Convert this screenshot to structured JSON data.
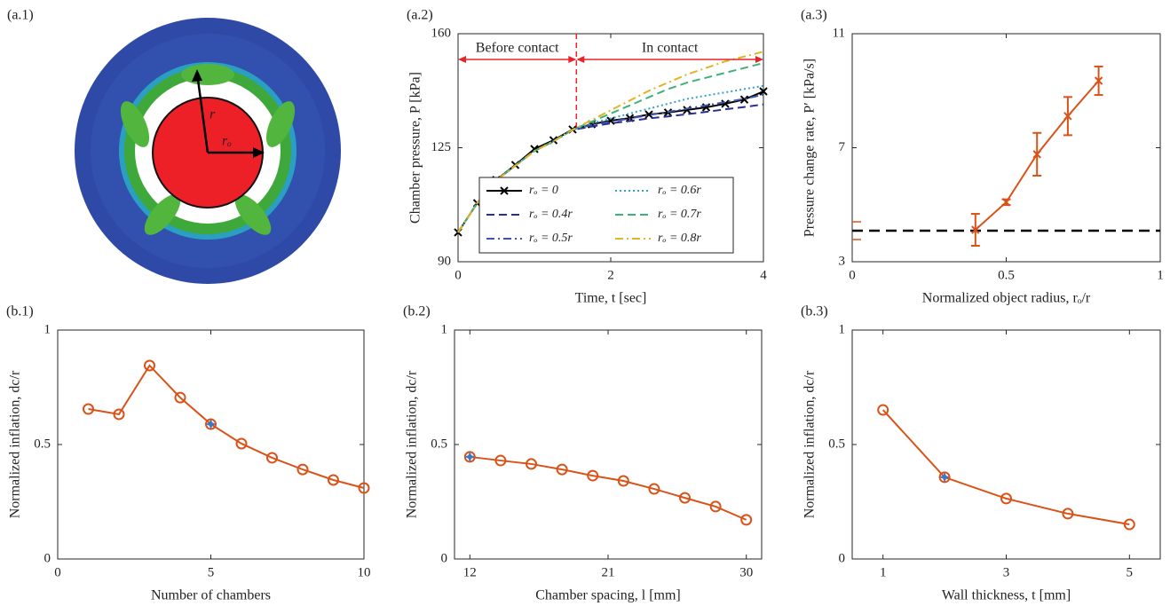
{
  "image_panel": {
    "panel": "(a.1)",
    "labels": [
      "r",
      "rₒ"
    ]
  },
  "chart_data": [
    {
      "type": "line",
      "panel": "(a.2)",
      "x_label": "Time, t [sec]",
      "y_label": "Chamber pressure, P [kPa]",
      "x": [
        0,
        0.25,
        0.5,
        0.75,
        1,
        1.25,
        1.5,
        1.75,
        2,
        2.25,
        2.5,
        2.75,
        3,
        3.25,
        3.5,
        3.75,
        4
      ],
      "xlim": [
        0,
        4
      ],
      "xticks": [
        0,
        2,
        4
      ],
      "ylim": [
        90,
        160
      ],
      "yticks": [
        90,
        125,
        160
      ],
      "contact_time": 1.55,
      "annotations": [
        "Before contact",
        "In contact"
      ],
      "annotation_color": "#e8242b",
      "series": [
        {
          "name": "rₒ = 0",
          "color": "#000000",
          "dash": "solid",
          "marker": "x",
          "values": [
            99,
            108,
            115.1,
            119.7,
            124.6,
            127.3,
            130.6,
            132.2,
            133.3,
            134.1,
            135.2,
            135.8,
            136.6,
            137.4,
            138.5,
            139.8,
            142.3
          ]
        },
        {
          "name": "rₒ = 0.4r",
          "color": "#2b2f8f",
          "dash": "dashed",
          "values": [
            99,
            108,
            115,
            119.5,
            124,
            127,
            130.5,
            131.5,
            132.5,
            133.2,
            134,
            134.6,
            135.3,
            136,
            136.8,
            137.5,
            138.3
          ]
        },
        {
          "name": "rₒ = 0.5r",
          "color": "#3d55a8",
          "dash": "dashdot",
          "values": [
            99,
            108,
            115,
            119.5,
            124,
            127,
            130.5,
            132,
            133,
            134,
            135,
            136,
            137,
            138,
            139,
            140,
            141.3
          ]
        },
        {
          "name": "rₒ = 0.6r",
          "color": "#34a3c8",
          "dash": "dotted",
          "values": [
            99,
            108,
            115,
            119.5,
            124,
            127,
            130.5,
            132.5,
            134,
            135.5,
            137,
            138.5,
            140,
            141,
            142,
            143,
            144
          ]
        },
        {
          "name": "rₒ = 0.7r",
          "color": "#3db27a",
          "dash": "dashed",
          "values": [
            99,
            108,
            115,
            119.5,
            124,
            127,
            130.5,
            133,
            135.5,
            138,
            140.5,
            143,
            145,
            146.5,
            148,
            149.5,
            151
          ]
        },
        {
          "name": "rₒ = 0.8r",
          "color": "#e2b322",
          "dash": "dashdot",
          "values": [
            99,
            108,
            115,
            119.5,
            124,
            127,
            130.5,
            133.5,
            136.5,
            139.5,
            142.5,
            145,
            147.5,
            149.5,
            151.5,
            153,
            154.5
          ]
        }
      ]
    },
    {
      "type": "errorbar",
      "panel": "(a.3)",
      "x_label": "Normalized object radius, rₒ/r",
      "y_label": "Pressure change rate, P′ [kPa/s]",
      "xlim": [
        0,
        1
      ],
      "xticks": [
        0,
        0.5,
        1
      ],
      "ylim": [
        3,
        11
      ],
      "yticks": [
        3,
        7,
        11
      ],
      "x": [
        0.4,
        0.5,
        0.6,
        0.7,
        0.8
      ],
      "series": [
        {
          "color": "#d95319",
          "marker": "x",
          "values": [
            4.12,
            5.09,
            6.77,
            8.11,
            9.35
          ],
          "errors": [
            0.56,
            0.1,
            0.75,
            0.67,
            0.5
          ]
        }
      ],
      "reference": {
        "value": 4.09,
        "error": 0.31,
        "color": "#000000",
        "error_color": "#d95319"
      }
    },
    {
      "type": "line",
      "panel": "(b.1)",
      "x_label": "Number of chambers",
      "y_label": "Normalized inflation, dc/r",
      "xlim": [
        0,
        10
      ],
      "xticks": [
        0,
        5,
        10
      ],
      "ylim": [
        0,
        1
      ],
      "yticks": [
        0,
        0.5,
        1
      ],
      "x": [
        1,
        2,
        3,
        4,
        5,
        6,
        7,
        8,
        9,
        10
      ],
      "highlight_x": 5,
      "highlight_color": "#3a78c4",
      "series": [
        {
          "color": "#d95319",
          "dash": "solid",
          "marker": "o",
          "values": [
            0.655,
            0.632,
            0.845,
            0.705,
            0.589,
            0.504,
            0.442,
            0.391,
            0.345,
            0.31
          ]
        }
      ]
    },
    {
      "type": "line",
      "panel": "(b.2)",
      "x_label": "Chamber spacing, l [mm]",
      "y_label": "Normalized inflation, dc/r",
      "xlim": [
        11,
        31
      ],
      "xticks": [
        12,
        21,
        30
      ],
      "ylim": [
        0,
        1
      ],
      "yticks": [
        0,
        0.5,
        1
      ],
      "x": [
        12,
        14,
        16,
        18,
        20,
        22,
        24,
        26,
        28,
        30
      ],
      "highlight_x": 12,
      "highlight_color": "#3a78c4",
      "series": [
        {
          "color": "#d95319",
          "dash": "solid",
          "marker": "o",
          "values": [
            0.446,
            0.43,
            0.415,
            0.391,
            0.364,
            0.341,
            0.306,
            0.267,
            0.229,
            0.171
          ]
        }
      ]
    },
    {
      "type": "line",
      "panel": "(b.3)",
      "x_label": "Wall thickness, t [mm]",
      "y_label": "Normalized inflation, dc/r",
      "xlim": [
        0.5,
        5.5
      ],
      "xticks": [
        1,
        3,
        5
      ],
      "ylim": [
        0,
        1
      ],
      "yticks": [
        0,
        0.5,
        1
      ],
      "x": [
        1,
        2,
        3,
        4,
        5
      ],
      "highlight_x": 2,
      "highlight_color": "#3a78c4",
      "series": [
        {
          "color": "#d95319",
          "dash": "solid",
          "marker": "o",
          "values": [
            0.651,
            0.357,
            0.264,
            0.198,
            0.151
          ]
        }
      ]
    }
  ]
}
